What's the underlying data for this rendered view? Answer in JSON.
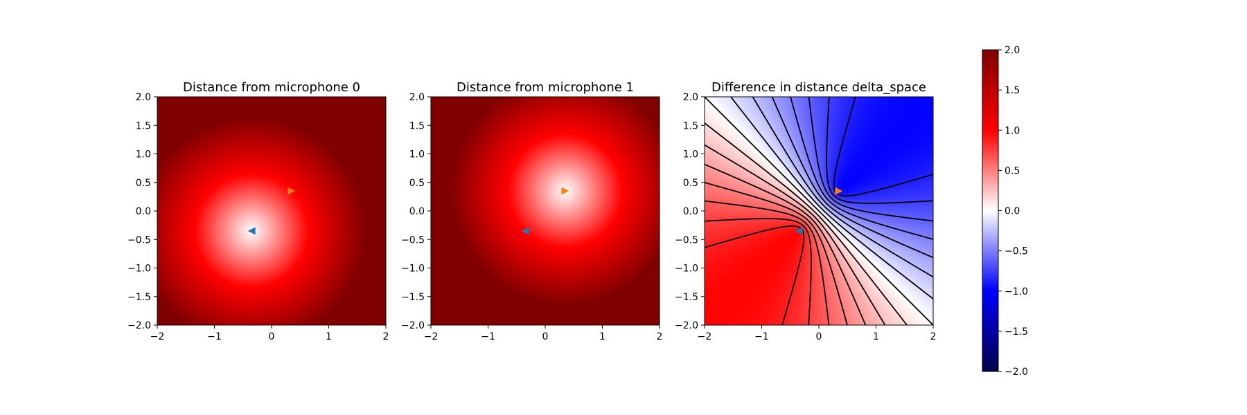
{
  "chart_data": [
    {
      "type": "heatmap",
      "title": "Distance from microphone 0",
      "xlim": [
        -2,
        2
      ],
      "ylim": [
        -2,
        2
      ],
      "xticks": [
        "−2",
        "−1",
        "0",
        "1",
        "2"
      ],
      "yticks": [
        "−2.0",
        "−1.5",
        "−1.0",
        "−0.5",
        "0.0",
        "0.5",
        "1.0",
        "1.5",
        "2.0"
      ],
      "colormap": "seismic",
      "field": "distance_to_microphone_0",
      "markers": [
        {
          "x": -0.35,
          "y": -0.35,
          "symbol": "triangle-left",
          "color": "#1f77b4"
        },
        {
          "x": 0.35,
          "y": 0.35,
          "symbol": "triangle-right",
          "color": "#ff7f0e"
        }
      ],
      "microphone": {
        "x": -0.35,
        "y": -0.35
      }
    },
    {
      "type": "heatmap",
      "title": "Distance from microphone 1",
      "xlim": [
        -2,
        2
      ],
      "ylim": [
        -2,
        2
      ],
      "xticks": [
        "−2",
        "−1",
        "0",
        "1",
        "2"
      ],
      "yticks": [
        "−2.0",
        "−1.5",
        "−1.0",
        "−0.5",
        "0.0",
        "0.5",
        "1.0",
        "1.5",
        "2.0"
      ],
      "colormap": "seismic",
      "field": "distance_to_microphone_1",
      "markers": [
        {
          "x": -0.35,
          "y": -0.35,
          "symbol": "triangle-left",
          "color": "#1f77b4"
        },
        {
          "x": 0.35,
          "y": 0.35,
          "symbol": "triangle-right",
          "color": "#ff7f0e"
        }
      ],
      "microphone": {
        "x": 0.35,
        "y": 0.35
      }
    },
    {
      "type": "heatmap",
      "title": "Difference in distance delta_space",
      "xlim": [
        -2,
        2
      ],
      "ylim": [
        -2,
        2
      ],
      "xticks": [
        "−2",
        "−1",
        "0",
        "1",
        "2"
      ],
      "yticks": [
        "−2.0",
        "−1.5",
        "−1.0",
        "−0.5",
        "0.0",
        "0.5",
        "1.0",
        "1.5",
        "2.0"
      ],
      "colormap": "seismic",
      "field": "distance_difference",
      "markers": [
        {
          "x": -0.35,
          "y": -0.35,
          "symbol": "triangle-left",
          "color": "#1f77b4"
        },
        {
          "x": 0.35,
          "y": 0.35,
          "symbol": "triangle-right",
          "color": "#ff7f0e"
        }
      ],
      "contours": {
        "positive_levels": [
          0.125,
          0.25,
          0.375,
          0.5,
          0.625,
          0.75,
          0.875
        ],
        "zero_level": 0,
        "negative_levels": [
          -0.125,
          -0.25,
          -0.375,
          -0.5,
          -0.625,
          -0.75,
          -0.875
        ],
        "negative_style": "dashed",
        "color": "#000000"
      }
    }
  ],
  "colorbar": {
    "vmin": -2.0,
    "vmax": 2.0,
    "colormap": "seismic",
    "ticks": [
      "2.0",
      "1.5",
      "1.0",
      "0.5",
      "0.0",
      "−0.5",
      "−1.0",
      "−1.5",
      "−2.0"
    ]
  }
}
